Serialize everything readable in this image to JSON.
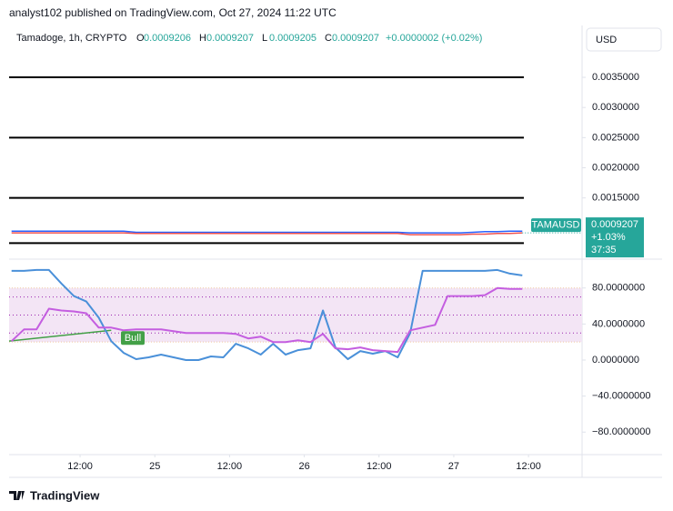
{
  "header": {
    "title": "analyst102 published on TradingView.com, Oct 27, 2024 11:22 UTC",
    "brand": "TradingView",
    "currency": "USD"
  },
  "chart_data": [
    {
      "type": "line",
      "title": "Tamadoge, 1h, CRYPTO",
      "ohlc": [
        {
          "key": "O",
          "value": 0.0009206,
          "label": "0.0009206"
        },
        {
          "key": "H",
          "value": 0.0009207,
          "label": "0.0009207"
        },
        {
          "key": "L",
          "value": 0.0009205,
          "label": "0.0009205"
        },
        {
          "key": "C",
          "value": 0.0009207,
          "label": "0.0009207"
        }
      ],
      "change": "+0.0000002 (+0.02%)",
      "last": {
        "name": "TAMAUSD",
        "value": 0.0009207,
        "label": "0.0009207",
        "change": "+1.03%",
        "countdown": "37:35",
        "color": "#26a69a"
      },
      "x": [
        1,
        3,
        5,
        7,
        9,
        11,
        13,
        15,
        17,
        19,
        21,
        23,
        25,
        27,
        29,
        31,
        33,
        35,
        37,
        39,
        41,
        43,
        45,
        47,
        49,
        51,
        53,
        55,
        57,
        59,
        61,
        63,
        65,
        67,
        69,
        71,
        73,
        75,
        77,
        79,
        81,
        83
      ],
      "xlim": [
        0.6,
        92.6
      ],
      "ylim": [
        0.000515,
        0.00436
      ],
      "yticks": [
        {
          "value": 0.0035,
          "label": "0.0035000"
        },
        {
          "value": 0.003,
          "label": "0.0030000"
        },
        {
          "value": 0.0025,
          "label": "0.0025000"
        },
        {
          "value": 0.002,
          "label": "0.0020000"
        },
        {
          "value": 0.0015,
          "label": "0.0015000"
        }
      ],
      "hlines": [
        0.0035,
        0.0025,
        0.0015,
        0.00075
      ],
      "series": [
        {
          "color": "#2962ff",
          "values": [
            0.00095,
            0.00095,
            0.00095,
            0.00095,
            0.00095,
            0.00095,
            0.00095,
            0.00095,
            0.00095,
            0.00095,
            0.00093,
            0.00093,
            0.00093,
            0.00093,
            0.00093,
            0.00093,
            0.00093,
            0.00093,
            0.00093,
            0.00093,
            0.00093,
            0.00093,
            0.00093,
            0.00093,
            0.00093,
            0.00093,
            0.00093,
            0.00093,
            0.00093,
            0.00093,
            0.00093,
            0.00093,
            0.00092,
            0.00092,
            0.00092,
            0.00092,
            0.00092,
            0.00093,
            0.00094,
            0.00094,
            0.00095,
            0.00095
          ]
        },
        {
          "color": "#ef5350",
          "values": [
            0.00092,
            0.00092,
            0.00092,
            0.00092,
            0.00092,
            0.00092,
            0.00092,
            0.00092,
            0.00092,
            0.00092,
            0.00091,
            0.00091,
            0.00091,
            0.00091,
            0.00091,
            0.00091,
            0.00091,
            0.00091,
            0.00091,
            0.00091,
            0.00091,
            0.00091,
            0.00091,
            0.00091,
            0.00091,
            0.00091,
            0.00091,
            0.00091,
            0.00091,
            0.00091,
            0.00091,
            0.00091,
            0.00089,
            0.00089,
            0.00089,
            0.00089,
            0.00089,
            0.0009,
            0.0009,
            0.00091,
            0.00091,
            0.00092
          ]
        }
      ]
    },
    {
      "type": "line",
      "x": [
        1,
        3,
        5,
        7,
        9,
        11,
        13,
        15,
        17,
        19,
        21,
        23,
        25,
        27,
        29,
        31,
        33,
        35,
        37,
        39,
        41,
        43,
        45,
        47,
        49,
        51,
        53,
        55,
        57,
        59,
        61,
        63,
        65,
        67,
        69,
        71,
        73,
        75,
        77,
        79,
        81,
        83
      ],
      "xlim": [
        0.6,
        92.6
      ],
      "ylim": [
        -105,
        110
      ],
      "yticks": [
        {
          "value": 80,
          "label": "80.0000000"
        },
        {
          "value": 40,
          "label": "40.0000000"
        },
        {
          "value": 0,
          "label": "0.0000000"
        },
        {
          "value": -40,
          "label": "−40.0000000"
        },
        {
          "value": -80,
          "label": "−80.0000000"
        }
      ],
      "xticks": [
        {
          "value": 12,
          "label": "12:00"
        },
        {
          "value": 24,
          "label": "25"
        },
        {
          "value": 36,
          "label": "12:00"
        },
        {
          "value": 48,
          "label": "26"
        },
        {
          "value": 60,
          "label": "12:00"
        },
        {
          "value": 72,
          "label": "27"
        },
        {
          "value": 84,
          "label": "12:00"
        }
      ],
      "band": [
        80,
        20
      ],
      "band_color": "#f3e5f5",
      "levels": [
        70,
        50,
        30
      ],
      "trendline": {
        "x": [
          0.6,
          17
        ],
        "y": [
          21,
          33
        ],
        "color": "#43a047"
      },
      "annotation": {
        "text": "Bull",
        "x": 19,
        "y": 24,
        "color": "#43a047"
      },
      "series": [
        {
          "color": "#4a90d9",
          "values": [
            99,
            99,
            100,
            100,
            85,
            71,
            65,
            47,
            21,
            8,
            1,
            3,
            6,
            3,
            0,
            0,
            4,
            3,
            18,
            13,
            6,
            18,
            6,
            11,
            13,
            55,
            14,
            1,
            10,
            7,
            10,
            3,
            30,
            99,
            99,
            99,
            99,
            99,
            99,
            100,
            96,
            94
          ]
        },
        {
          "color": "#c45ee0",
          "values": [
            21,
            34,
            34,
            57,
            55,
            54,
            52,
            36,
            36,
            33,
            34,
            34,
            34,
            32,
            30,
            30,
            30,
            30,
            29,
            24,
            26,
            20,
            20,
            22,
            20,
            29,
            13,
            12,
            14,
            11,
            10,
            9,
            33,
            36,
            39,
            71,
            71,
            71,
            72,
            80,
            79,
            79
          ]
        }
      ]
    }
  ]
}
